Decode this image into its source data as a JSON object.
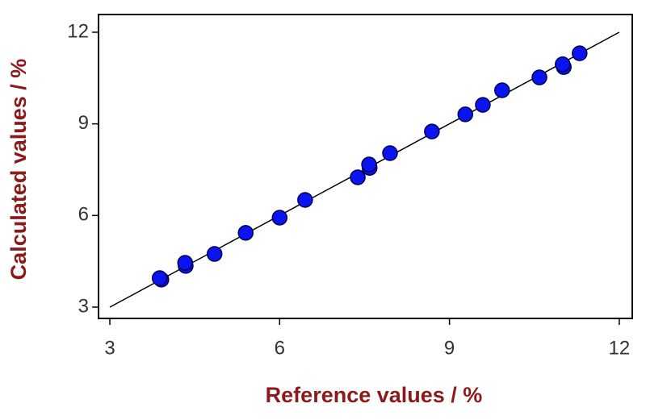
{
  "chart_data": {
    "type": "scatter",
    "x_label": "Reference values / %",
    "y_label": "Calculated values / %",
    "xlim": [
      2.8,
      12.23
    ],
    "ylim": [
      2.63,
      12.58
    ],
    "xticks": [
      3,
      6,
      9,
      12
    ],
    "yticks": [
      3,
      6,
      9,
      12
    ],
    "grid": false,
    "series": [
      {
        "color": "#0a14f0",
        "x": [
          3.91,
          3.88,
          4.34,
          4.33,
          4.85,
          5.4,
          6.0,
          6.45,
          7.38,
          7.59,
          7.58,
          7.95,
          8.69,
          9.28,
          9.59,
          9.93,
          10.59,
          11.02,
          11.0,
          11.3
        ],
        "values": [
          3.9,
          3.95,
          4.35,
          4.45,
          4.74,
          5.43,
          5.93,
          6.51,
          7.25,
          7.56,
          7.67,
          8.04,
          8.75,
          9.31,
          9.62,
          10.1,
          10.52,
          10.86,
          10.95,
          11.31
        ]
      }
    ],
    "fit_line": {
      "x": [
        3,
        12
      ],
      "y": [
        3,
        12
      ],
      "color": "#000000"
    }
  }
}
